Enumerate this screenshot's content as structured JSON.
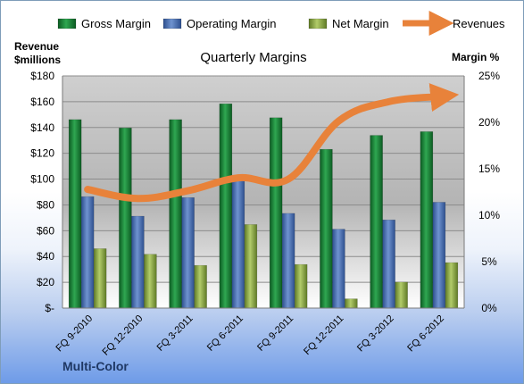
{
  "colors": {
    "gross": "#1e8a3c",
    "operating": "#4a73b8",
    "net": "#8eab4a",
    "revenues": "#e8823a"
  },
  "footer_label": "Multi-Color",
  "chart_data": {
    "type": "bar",
    "title": "Quarterly Margins",
    "ylabel_left": "Revenue $millions",
    "ylabel_right": "Margin %",
    "categories": [
      "FQ 9-2010",
      "FQ 12-2010",
      "FQ 3-2011",
      "FQ 6-2011",
      "FQ 9-2011",
      "FQ 12-2011",
      "FQ 3-2012",
      "FQ 6-2012"
    ],
    "left_axis": {
      "min": 0,
      "max": 180,
      "step": 20,
      "tick_labels": [
        "$-",
        "$20",
        "$40",
        "$60",
        "$80",
        "$100",
        "$120",
        "$140",
        "$160",
        "$180"
      ]
    },
    "right_axis": {
      "min": 0,
      "max": 25,
      "step": 5,
      "tick_labels": [
        "0%",
        "5%",
        "10%",
        "15%",
        "20%",
        "25%"
      ]
    },
    "series": [
      {
        "name": "Gross Margin",
        "axis": "right",
        "kind": "bar",
        "values": [
          20.3,
          19.4,
          20.3,
          22.0,
          20.5,
          17.1,
          18.6,
          19.0
        ]
      },
      {
        "name": "Operating Margin",
        "axis": "right",
        "kind": "bar",
        "values": [
          12.0,
          9.9,
          11.9,
          13.9,
          10.2,
          8.5,
          9.5,
          11.4
        ]
      },
      {
        "name": "Net Margin",
        "axis": "right",
        "kind": "bar",
        "values": [
          6.4,
          5.8,
          4.6,
          9.0,
          4.7,
          1.0,
          2.8,
          4.9
        ]
      },
      {
        "name": "Revenues",
        "axis": "left",
        "kind": "line",
        "values": [
          92,
          85,
          91,
          101,
          100,
          145,
          160,
          164
        ]
      }
    ],
    "legend": {
      "position": "top",
      "entries": [
        "Gross Margin",
        "Operating Margin",
        "Net Margin",
        "Revenues"
      ]
    },
    "grid": true
  }
}
